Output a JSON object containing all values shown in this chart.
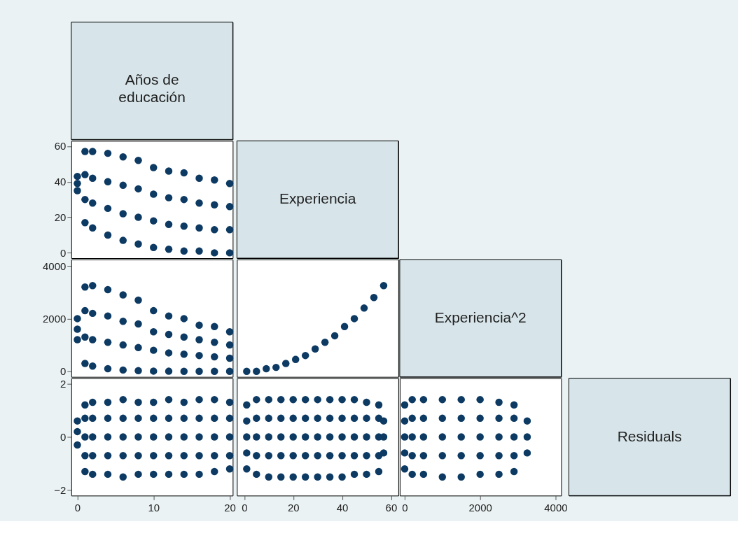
{
  "chart_data": [
    {
      "type": "other",
      "title": "Años de educación"
    },
    {
      "type": "scatter",
      "marker": "circle",
      "color": "#0c3a63",
      "tick_labels": "y",
      "xlim": [
        -0.8,
        20.4
      ],
      "ylim": [
        -3,
        63
      ],
      "xticks": [
        0,
        10,
        20
      ],
      "yticks": [
        0,
        20,
        40,
        60
      ],
      "x": [
        0,
        0,
        0,
        1,
        1,
        1,
        1,
        2,
        2,
        2,
        2,
        4,
        4,
        4,
        4,
        6,
        6,
        6,
        6,
        8,
        8,
        8,
        8,
        10,
        10,
        10,
        10,
        12,
        12,
        12,
        12,
        14,
        14,
        14,
        14,
        16,
        16,
        16,
        16,
        18,
        18,
        18,
        18,
        20,
        20,
        20,
        20
      ],
      "values": [
        35,
        39,
        43,
        17,
        30,
        44,
        57,
        14,
        28,
        42,
        57,
        10,
        25,
        40,
        56,
        7,
        22,
        38,
        54,
        5,
        20,
        36,
        52,
        3,
        18,
        33,
        48,
        2,
        16,
        31,
        46,
        1,
        15,
        30,
        45,
        1,
        14,
        28,
        42,
        0,
        13,
        27,
        41,
        0,
        13,
        26,
        39
      ]
    },
    {
      "type": "other",
      "title": "Experiencia"
    },
    {
      "type": "scatter",
      "marker": "circle",
      "color": "#0c3a63",
      "tick_labels": "y",
      "xlim": [
        -0.8,
        20.4
      ],
      "ylim": [
        -210,
        4240
      ],
      "xticks": [
        0,
        10,
        20
      ],
      "yticks": [
        0,
        2000,
        4000
      ],
      "x": [
        0,
        0,
        0,
        1,
        1,
        1,
        1,
        2,
        2,
        2,
        2,
        4,
        4,
        4,
        4,
        6,
        6,
        6,
        6,
        8,
        8,
        8,
        8,
        10,
        10,
        10,
        10,
        12,
        12,
        12,
        12,
        14,
        14,
        14,
        14,
        16,
        16,
        16,
        16,
        18,
        18,
        18,
        18,
        20,
        20,
        20,
        20
      ],
      "values": [
        1200,
        1600,
        2000,
        300,
        1300,
        2300,
        3200,
        200,
        1200,
        2200,
        3250,
        100,
        1100,
        2100,
        3100,
        50,
        1000,
        1900,
        2900,
        25,
        900,
        1800,
        2700,
        10,
        800,
        1500,
        2300,
        5,
        700,
        1400,
        2100,
        0,
        650,
        1300,
        2000,
        0,
        600,
        1200,
        1750,
        0,
        550,
        1100,
        1700,
        0,
        500,
        1000,
        1500
      ]
    },
    {
      "type": "scatter",
      "marker": "circle",
      "color": "#0c3a63",
      "tick_labels": false,
      "xlim": [
        -3,
        63
      ],
      "ylim": [
        -210,
        4240
      ],
      "xticks": [
        0,
        20,
        40,
        60
      ],
      "yticks": [
        0,
        2000,
        4000
      ],
      "x": [
        1,
        5,
        9,
        13,
        17,
        21,
        25,
        29,
        33,
        37,
        41,
        45,
        49,
        53,
        57
      ],
      "values": [
        0,
        0,
        100,
        150,
        300,
        450,
        600,
        850,
        1100,
        1350,
        1700,
        2000,
        2400,
        2800,
        3250
      ]
    },
    {
      "type": "other",
      "title": "Experiencia^2"
    },
    {
      "type": "scatter",
      "marker": "circle",
      "color": "#0c3a63",
      "xlim": [
        -0.8,
        20.4
      ],
      "ylim": [
        -2.2,
        2.2
      ],
      "xticks": [
        0,
        10,
        20
      ],
      "yticks": [
        -2,
        0,
        2
      ],
      "x": [
        0,
        0,
        0,
        1,
        1,
        1,
        1,
        1,
        2,
        2,
        2,
        2,
        2,
        4,
        4,
        4,
        4,
        4,
        6,
        6,
        6,
        6,
        6,
        8,
        8,
        8,
        8,
        8,
        10,
        10,
        10,
        10,
        10,
        12,
        12,
        12,
        12,
        12,
        14,
        14,
        14,
        14,
        14,
        16,
        16,
        16,
        16,
        16,
        18,
        18,
        18,
        18,
        18,
        20,
        20,
        20,
        20,
        20
      ],
      "values": [
        -0.3,
        0.2,
        0.6,
        -1.3,
        -0.7,
        0,
        0.7,
        1.2,
        -1.4,
        -0.7,
        0,
        0.7,
        1.3,
        -1.4,
        -0.7,
        0,
        0.7,
        1.3,
        -1.5,
        -0.7,
        0,
        0.7,
        1.4,
        -1.4,
        -0.7,
        0,
        0.7,
        1.3,
        -1.4,
        -0.7,
        0,
        0.7,
        1.3,
        -1.4,
        -0.7,
        0,
        0.7,
        1.4,
        -1.4,
        -0.7,
        0,
        0.7,
        1.3,
        -1.4,
        -0.7,
        0,
        0.7,
        1.4,
        -1.3,
        -0.7,
        0,
        0.7,
        1.4,
        -1.2,
        -0.7,
        0,
        0.7,
        1.3
      ]
    },
    {
      "type": "scatter",
      "marker": "circle",
      "color": "#0c3a63",
      "tick_labels": "x",
      "xlim": [
        -3,
        63
      ],
      "ylim": [
        -2.2,
        2.2
      ],
      "xticks": [
        0,
        20,
        40,
        60
      ],
      "yticks": [
        -2,
        0,
        2
      ],
      "x": [
        1,
        1,
        1,
        1,
        1,
        5,
        5,
        5,
        5,
        5,
        10,
        10,
        10,
        10,
        10,
        15,
        15,
        15,
        15,
        15,
        20,
        20,
        20,
        20,
        20,
        25,
        25,
        25,
        25,
        25,
        30,
        30,
        30,
        30,
        30,
        35,
        35,
        35,
        35,
        35,
        40,
        40,
        40,
        40,
        40,
        45,
        45,
        45,
        45,
        45,
        50,
        50,
        50,
        50,
        50,
        55,
        55,
        55,
        55,
        55,
        57,
        57,
        57
      ],
      "values": [
        -1.2,
        -0.6,
        0,
        0.6,
        1.2,
        -1.4,
        -0.7,
        0,
        0.7,
        1.4,
        -1.5,
        -0.7,
        0,
        0.7,
        1.4,
        -1.5,
        -0.7,
        0,
        0.7,
        1.4,
        -1.5,
        -0.7,
        0,
        0.7,
        1.4,
        -1.5,
        -0.7,
        0,
        0.7,
        1.4,
        -1.5,
        -0.7,
        0,
        0.7,
        1.4,
        -1.5,
        -0.7,
        0,
        0.7,
        1.4,
        -1.5,
        -0.7,
        0,
        0.7,
        1.4,
        -1.4,
        -0.7,
        0,
        0.7,
        1.4,
        -1.4,
        -0.7,
        0,
        0.7,
        1.3,
        -1.3,
        -0.7,
        0,
        0.7,
        1.2,
        -0.6,
        0,
        0.6
      ]
    },
    {
      "type": "scatter",
      "marker": "circle",
      "color": "#0c3a63",
      "tick_labels": "x",
      "xlim": [
        -130,
        4150
      ],
      "ylim": [
        -2.2,
        2.2
      ],
      "xticks": [
        0,
        2000,
        4000
      ],
      "yticks": [
        -2,
        0,
        2
      ],
      "x": [
        1,
        1,
        1,
        1,
        1,
        200,
        200,
        200,
        200,
        200,
        500,
        500,
        500,
        500,
        500,
        1000,
        1000,
        1000,
        1000,
        1000,
        1500,
        1500,
        1500,
        1500,
        1500,
        2000,
        2000,
        2000,
        2000,
        2000,
        2500,
        2500,
        2500,
        2500,
        2500,
        2900,
        2900,
        2900,
        2900,
        2900,
        3249,
        3249,
        3249
      ],
      "values": [
        -1.2,
        -0.6,
        0,
        0.6,
        1.2,
        -1.4,
        -0.7,
        0,
        0.7,
        1.4,
        -1.4,
        -0.7,
        0,
        0.7,
        1.4,
        -1.5,
        -0.7,
        0,
        0.7,
        1.4,
        -1.5,
        -0.7,
        0,
        0.7,
        1.4,
        -1.4,
        -0.7,
        0,
        0.7,
        1.4,
        -1.4,
        -0.7,
        0,
        0.7,
        1.3,
        -1.3,
        -0.7,
        0,
        0.7,
        1.2,
        -0.6,
        0,
        0.6
      ]
    },
    {
      "type": "other",
      "title": "Residuals"
    }
  ]
}
